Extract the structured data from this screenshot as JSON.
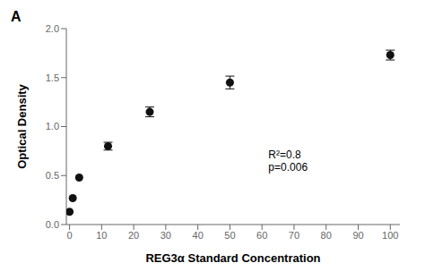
{
  "chart_data": {
    "type": "scatter",
    "title": "A",
    "x_label": "REG3α Standard Concentration",
    "y_label": "Optical Density",
    "x": [
      0,
      1,
      3,
      12,
      25,
      50,
      100
    ],
    "values": [
      0.13,
      0.27,
      0.48,
      0.8,
      1.15,
      1.45,
      1.73
    ],
    "yerr": [
      null,
      null,
      null,
      0.04,
      0.05,
      0.065,
      0.05
    ],
    "color": "#111111",
    "xlim": [
      -1,
      103
    ],
    "ylim": [
      0.0,
      2.0
    ],
    "xticks": [
      0,
      10,
      20,
      30,
      40,
      50,
      60,
      70,
      80,
      90,
      100
    ],
    "yticks": [
      {
        "value": 0,
        "label": "0.0"
      },
      0.5,
      {
        "value": 1,
        "label": "1.0"
      },
      1.5,
      {
        "value": 2,
        "label": "2.0"
      }
    ],
    "grid": false,
    "annotations": [
      {
        "text": "R²=0.8\np=0.006",
        "x": 62,
        "y": 0.55
      }
    ]
  }
}
